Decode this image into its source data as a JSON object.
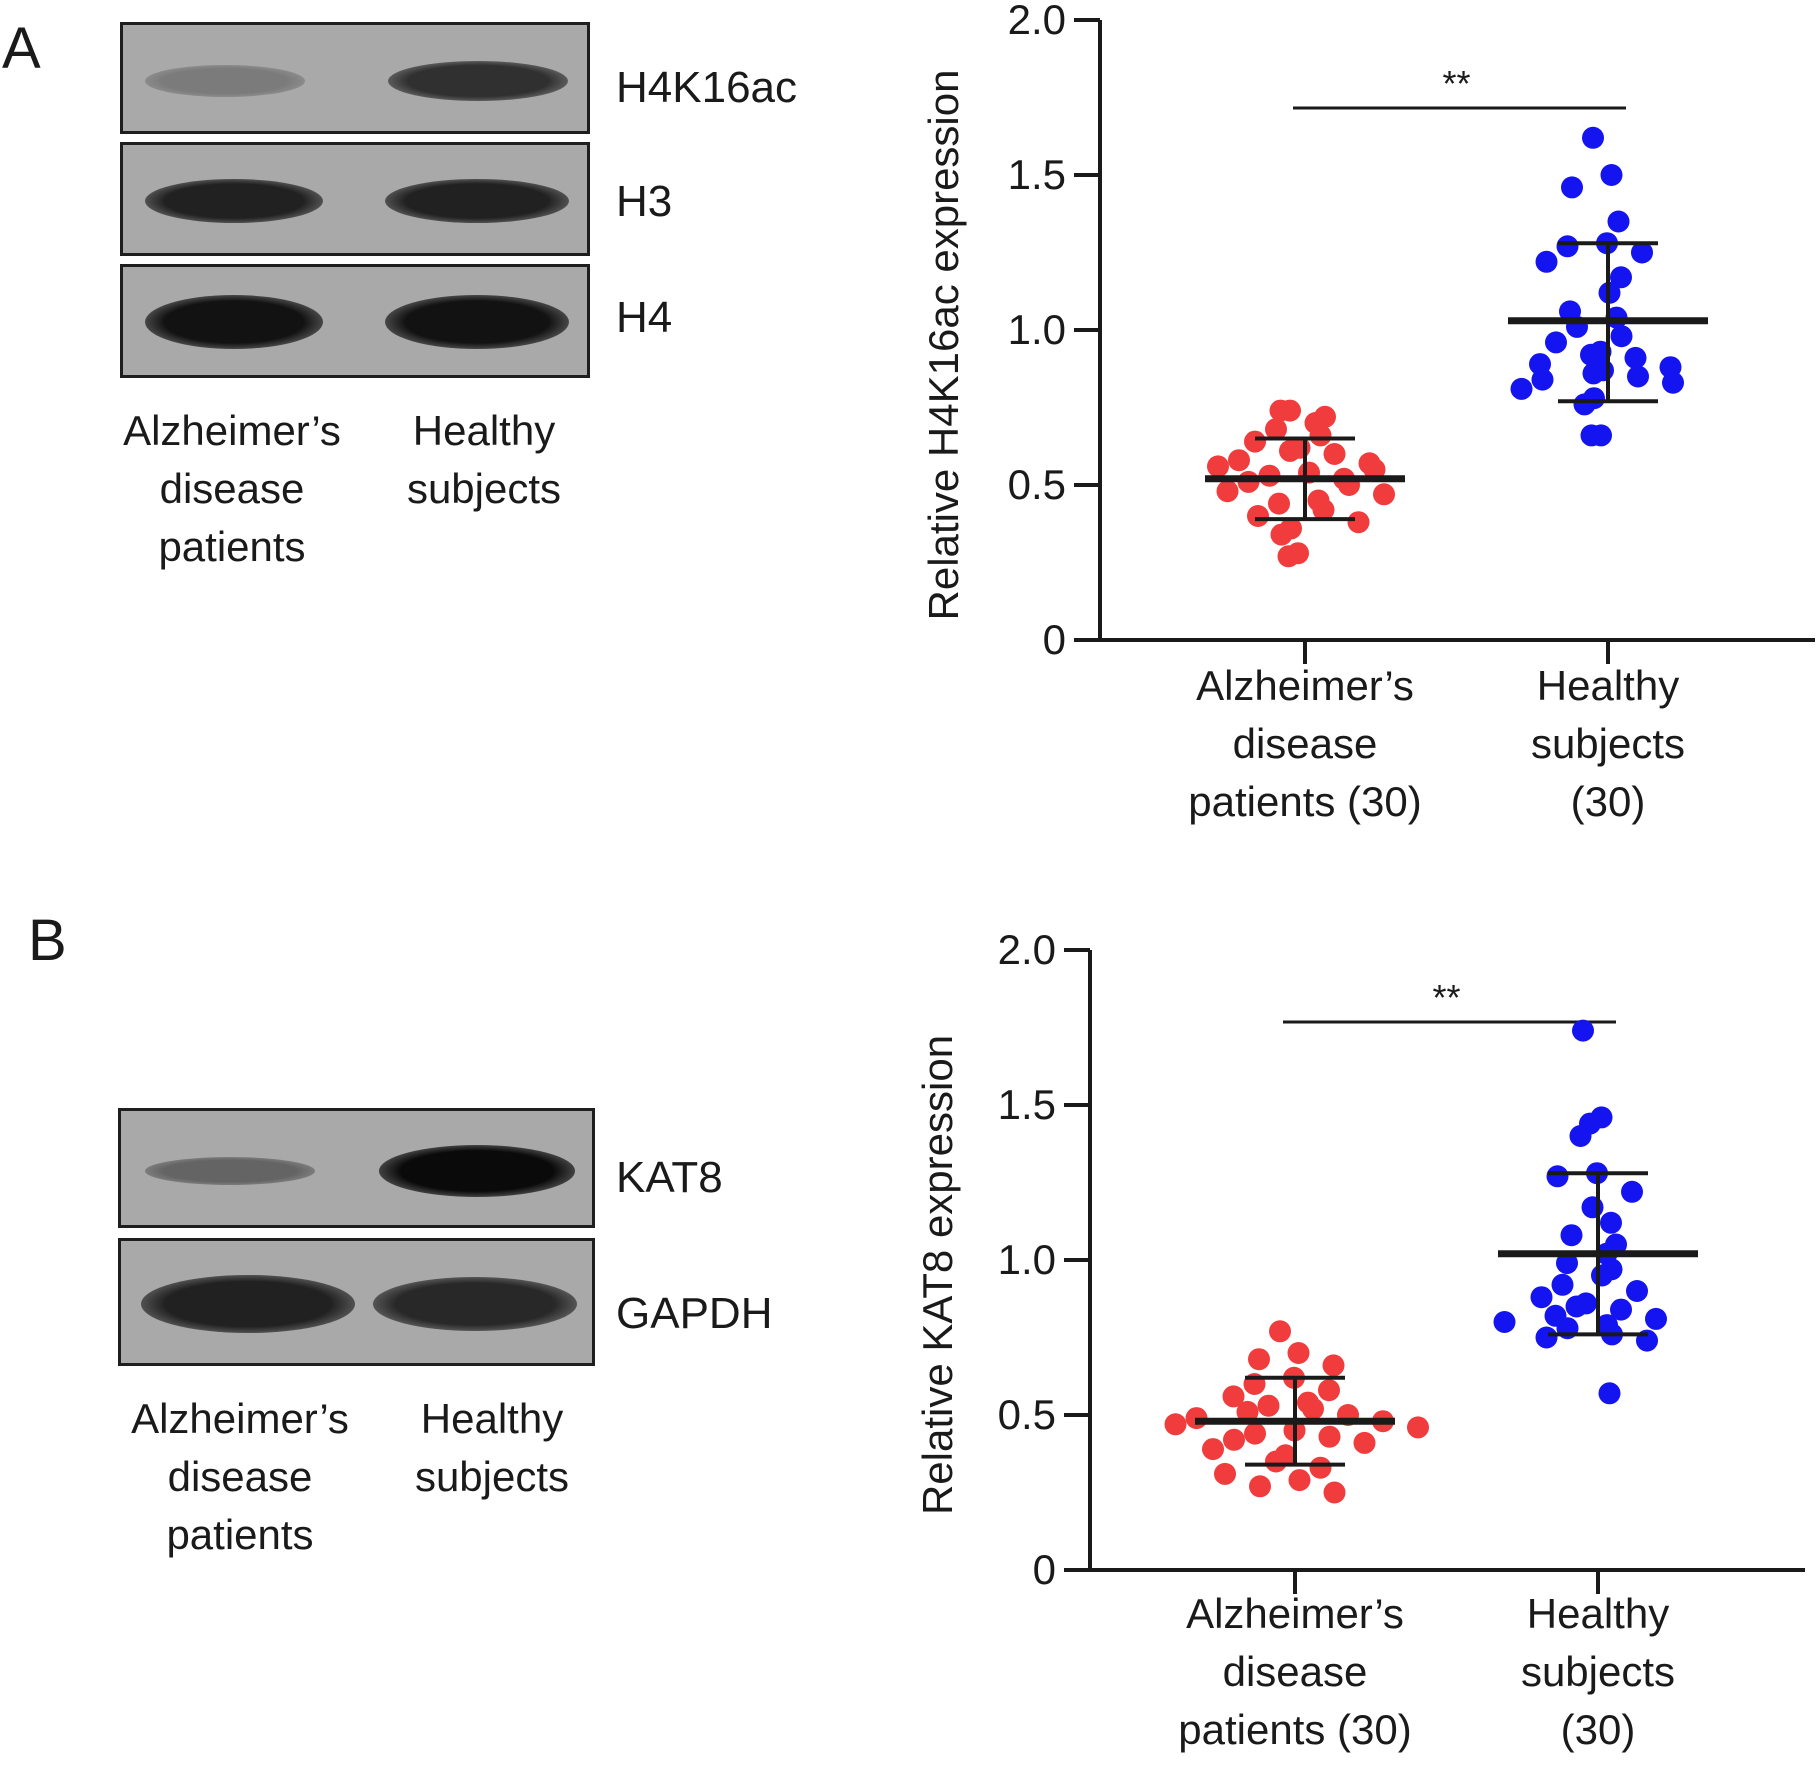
{
  "panels": [
    {
      "letter": "A",
      "blot": {
        "rows": [
          {
            "label": "H4K16ac",
            "intensity": [
              0.25,
              0.75
            ]
          },
          {
            "label": "H3",
            "intensity": [
              0.85,
              0.85
            ]
          },
          {
            "label": "H4",
            "intensity": [
              0.95,
              0.95
            ]
          }
        ],
        "lanes": [
          "Alzheimer's disease patients",
          "Healthy subjects"
        ],
        "lane_lines": [
          [
            "Alzheimer’s",
            "disease",
            "patients"
          ],
          [
            "Healthy",
            "subjects"
          ]
        ]
      }
    },
    {
      "letter": "B",
      "blot": {
        "rows": [
          {
            "label": "KAT8",
            "intensity": [
              0.4,
              1.0
            ]
          },
          {
            "label": "GAPDH",
            "intensity": [
              0.85,
              0.8
            ]
          }
        ],
        "lanes": [
          "Alzheimer's disease patients",
          "Healthy subjects"
        ],
        "lane_lines": [
          [
            "Alzheimer’s",
            "disease",
            "patients"
          ],
          [
            "Healthy",
            "subjects"
          ]
        ]
      }
    }
  ],
  "chart_data": [
    {
      "type": "scatter",
      "panel": "A",
      "ylabel": "Relative H4K16ac expression",
      "ylim": [
        0,
        2.0
      ],
      "yticks": [
        "0",
        "0.5",
        "1.0",
        "1.5",
        "2.0"
      ],
      "ytick_values": [
        0,
        0.5,
        1.0,
        1.5,
        2.0
      ],
      "categories": [
        "Alzheimer's disease patients (30)",
        "Healthy subjects (30)"
      ],
      "category_lines": [
        [
          "Alzheimer’s",
          "disease",
          "patients (30)"
        ],
        [
          "Healthy",
          "subjects",
          "(30)"
        ]
      ],
      "significance": "**",
      "series": [
        {
          "color": "#f03c3c",
          "mean": 0.52,
          "sd_low": 0.39,
          "sd_high": 0.65,
          "values": [
            0.74,
            0.74,
            0.72,
            0.7,
            0.68,
            0.66,
            0.64,
            0.62,
            0.61,
            0.6,
            0.58,
            0.57,
            0.56,
            0.55,
            0.54,
            0.53,
            0.52,
            0.51,
            0.5,
            0.48,
            0.47,
            0.45,
            0.44,
            0.42,
            0.4,
            0.38,
            0.36,
            0.34,
            0.28,
            0.27
          ]
        },
        {
          "color": "#1414f0",
          "mean": 1.03,
          "sd_low": 0.77,
          "sd_high": 1.28,
          "values": [
            1.62,
            1.5,
            1.46,
            1.35,
            1.28,
            1.27,
            1.25,
            1.22,
            1.17,
            1.12,
            1.06,
            1.04,
            1.01,
            0.98,
            0.96,
            0.93,
            0.92,
            0.91,
            0.89,
            0.88,
            0.87,
            0.86,
            0.85,
            0.84,
            0.83,
            0.81,
            0.78,
            0.76,
            0.66,
            0.66
          ]
        }
      ]
    },
    {
      "type": "scatter",
      "panel": "B",
      "ylabel": "Relative KAT8 expression",
      "ylim": [
        0,
        2.0
      ],
      "yticks": [
        "0",
        "0.5",
        "1.0",
        "1.5",
        "2.0"
      ],
      "ytick_values": [
        0,
        0.5,
        1.0,
        1.5,
        2.0
      ],
      "categories": [
        "Alzheimer's disease patients (30)",
        "Healthy subjects (30)"
      ],
      "category_lines": [
        [
          "Alzheimer’s",
          "disease",
          "patients (30)"
        ],
        [
          "Healthy",
          "subjects",
          "(30)"
        ]
      ],
      "significance": "**",
      "series": [
        {
          "color": "#f03c3c",
          "mean": 0.48,
          "sd_low": 0.34,
          "sd_high": 0.62,
          "values": [
            0.77,
            0.7,
            0.68,
            0.66,
            0.62,
            0.6,
            0.58,
            0.56,
            0.54,
            0.53,
            0.52,
            0.51,
            0.5,
            0.49,
            0.48,
            0.47,
            0.46,
            0.45,
            0.44,
            0.43,
            0.42,
            0.41,
            0.39,
            0.37,
            0.35,
            0.33,
            0.31,
            0.29,
            0.27,
            0.25
          ]
        },
        {
          "color": "#1414f0",
          "mean": 1.02,
          "sd_low": 0.76,
          "sd_high": 1.28,
          "values": [
            1.74,
            1.46,
            1.44,
            1.4,
            1.28,
            1.27,
            1.22,
            1.17,
            1.12,
            1.08,
            1.05,
            1.02,
            0.99,
            0.97,
            0.95,
            0.92,
            0.9,
            0.88,
            0.86,
            0.85,
            0.84,
            0.82,
            0.81,
            0.8,
            0.79,
            0.78,
            0.76,
            0.75,
            0.74,
            0.57
          ]
        }
      ]
    }
  ]
}
